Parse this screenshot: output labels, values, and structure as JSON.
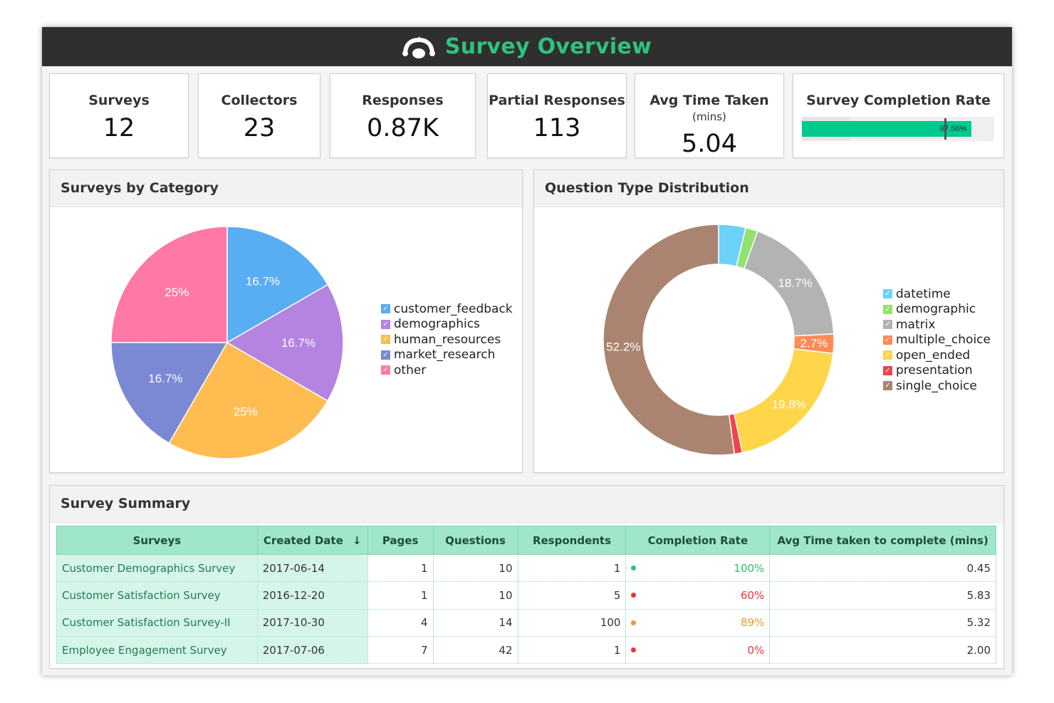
{
  "header": {
    "title": "Survey Overview",
    "logo_icon": "surveymonkey-logo-icon"
  },
  "kpis": [
    {
      "label": "Surveys",
      "value": "12"
    },
    {
      "label": "Collectors",
      "value": "23"
    },
    {
      "label": "Responses",
      "value": "0.87K"
    },
    {
      "label": "Partial Responses",
      "value": "113"
    },
    {
      "label": "Avg Time Taken",
      "unit": "(mins)",
      "value": "5.04"
    }
  ],
  "completion": {
    "label": "Survey Completion Rate",
    "value_label": "87.56%",
    "value": 87.56,
    "fill_color": "#00c98d"
  },
  "category_panel": {
    "title": "Surveys by Category"
  },
  "question_panel": {
    "title": "Question Type Distribution"
  },
  "chart_data": [
    {
      "type": "pie",
      "title": "Surveys by Category",
      "categories": [
        "customer_feedback",
        "demographics",
        "human_resources",
        "market_research",
        "other"
      ],
      "values": [
        16.7,
        16.7,
        25,
        16.7,
        25
      ],
      "labels": [
        "16.7%",
        "16.7%",
        "25%",
        "16.7%",
        "25%"
      ],
      "colors": [
        "#58adf3",
        "#b583e0",
        "#ffbc50",
        "#7b88d3",
        "#ff79a6"
      ],
      "legend": "right"
    },
    {
      "type": "pie",
      "title": "Question Type Distribution",
      "donut": true,
      "categories": [
        "datetime",
        "demographic",
        "matrix",
        "multiple_choice",
        "open_ended",
        "presentation",
        "single_choice"
      ],
      "values": [
        3.8,
        1.7,
        18.7,
        2.7,
        19.8,
        1.1,
        52.2
      ],
      "labels": [
        "",
        "",
        "18.7%",
        "2.7%",
        "19.8%",
        "",
        "52.2%"
      ],
      "colors": [
        "#6cd2fa",
        "#92e26f",
        "#b3b3b3",
        "#ff8a55",
        "#ffd54a",
        "#f0434d",
        "#aa8470"
      ],
      "legend": "right"
    }
  ],
  "summary": {
    "title": "Survey Summary",
    "sort_icon": "arrow-down-icon",
    "columns": [
      "Surveys",
      "Created Date",
      "Pages",
      "Questions",
      "Respondents",
      "Completion Rate",
      "Avg Time taken to complete (mins)"
    ],
    "rows": [
      {
        "survey": "Customer Demographics Survey",
        "created": "2017-06-14",
        "pages": "1",
        "questions": "10",
        "respondents": "1",
        "rate": "100%",
        "rate_color": "#2fbf71",
        "avg": "0.45"
      },
      {
        "survey": "Customer Satisfaction Survey",
        "created": "2016-12-20",
        "pages": "1",
        "questions": "10",
        "respondents": "5",
        "rate": "60%",
        "rate_color": "#e8343e",
        "avg": "5.83"
      },
      {
        "survey": "Customer Satisfaction Survey-II",
        "created": "2017-10-30",
        "pages": "4",
        "questions": "14",
        "respondents": "100",
        "rate": "89%",
        "rate_color": "#f2962e",
        "avg": "5.32"
      },
      {
        "survey": "Employee Engagement Survey",
        "created": "2017-07-06",
        "pages": "7",
        "questions": "42",
        "respondents": "1",
        "rate": "0%",
        "rate_color": "#e8343e",
        "avg": "2.00"
      }
    ]
  }
}
